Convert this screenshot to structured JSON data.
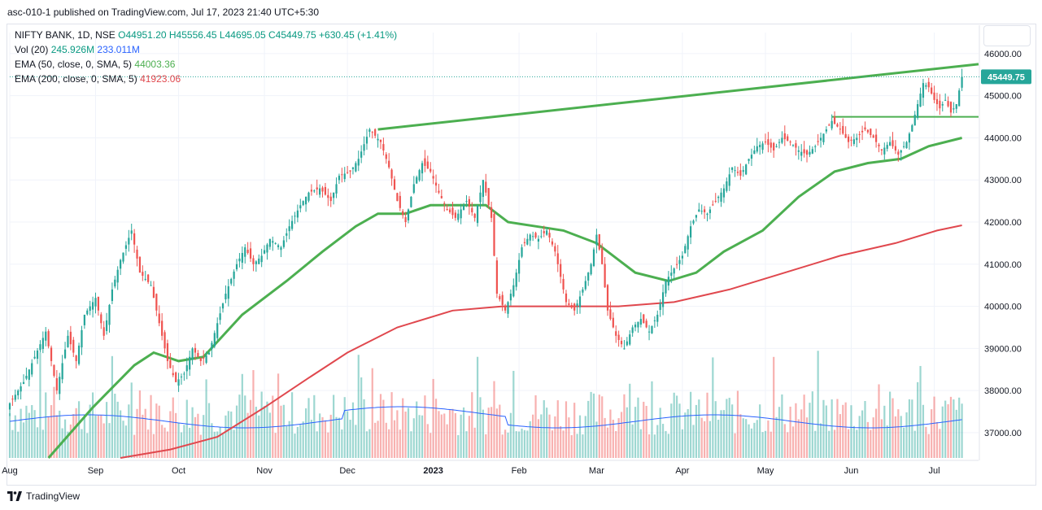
{
  "header": {
    "publish_text": "asc-010-1 published on TradingView.com, Jul 17, 2023 21:40 UTC+5:30"
  },
  "legend": {
    "title": "NIFTY BANK, 1D, NSE",
    "ohlc": "O44951.20 H45556.45 L44695.05 C45449.75 +630.45 (+1.41%)",
    "vol_label": "Vol (20)",
    "vol_value": "245.926M",
    "vol_ma": "233.011M",
    "ema50_label": "EMA (50, close, 0, SMA, 5)",
    "ema50_value": "44003.36",
    "ema200_label": "EMA (200, close, 0, SMA, 5)",
    "ema200_value": "41923.06"
  },
  "footer": {
    "brand": "TradingView"
  },
  "colors": {
    "up": "#26a69a",
    "down": "#ef5350",
    "ema50": "#4caf50",
    "ema200": "#e0484e",
    "volma": "#2962ff",
    "trend": "#4caf50",
    "price_label": "#26a69a"
  },
  "chart_data": {
    "type": "candlestick",
    "symbol": "NIFTY BANK, 1D, NSE",
    "last_price": 45449.75,
    "last_price_label": "45449.75",
    "y_range": [
      36400,
      46500
    ],
    "y_ticks": [
      37000,
      38000,
      39000,
      40000,
      41000,
      42000,
      43000,
      44000,
      45000,
      46000
    ],
    "y_tick_labels": [
      "37000.00",
      "38000.00",
      "39000.00",
      "40000.00",
      "41000.00",
      "42000.00",
      "43000.00",
      "44000.00",
      "45000.00",
      "46000.00"
    ],
    "x_range_days": [
      0,
      350
    ],
    "x_ticks": [
      {
        "label": "Aug",
        "day": 0
      },
      {
        "label": "Sep",
        "day": 31
      },
      {
        "label": "Oct",
        "day": 61
      },
      {
        "label": "Nov",
        "day": 92
      },
      {
        "label": "Dec",
        "day": 122
      },
      {
        "label": "2023",
        "day": 153
      },
      {
        "label": "Feb",
        "day": 184
      },
      {
        "label": "Mar",
        "day": 212
      },
      {
        "label": "Apr",
        "day": 243
      },
      {
        "label": "May",
        "day": 273
      },
      {
        "label": "Jun",
        "day": 304
      },
      {
        "label": "Jul",
        "day": 334
      }
    ],
    "series": [
      {
        "name": "NIFTY BANK close",
        "type": "candles",
        "points": [
          [
            0,
            37700
          ],
          [
            5,
            38200
          ],
          [
            9,
            38800
          ],
          [
            13,
            39400
          ],
          [
            17,
            38000
          ],
          [
            21,
            39300
          ],
          [
            24,
            38700
          ],
          [
            27,
            39800
          ],
          [
            31,
            40200
          ],
          [
            34,
            39300
          ],
          [
            37,
            40400
          ],
          [
            40,
            41100
          ],
          [
            44,
            41800
          ],
          [
            47,
            40800
          ],
          [
            51,
            40500
          ],
          [
            54,
            39600
          ],
          [
            57,
            38700
          ],
          [
            60,
            38200
          ],
          [
            63,
            38400
          ],
          [
            66,
            39000
          ],
          [
            69,
            38700
          ],
          [
            72,
            38900
          ],
          [
            75,
            39600
          ],
          [
            78,
            40300
          ],
          [
            82,
            41000
          ],
          [
            85,
            41400
          ],
          [
            88,
            41000
          ],
          [
            91,
            41200
          ],
          [
            94,
            41600
          ],
          [
            98,
            41400
          ],
          [
            101,
            41900
          ],
          [
            105,
            42400
          ],
          [
            108,
            42700
          ],
          [
            112,
            42800
          ],
          [
            116,
            42500
          ],
          [
            119,
            43100
          ],
          [
            123,
            43200
          ],
          [
            126,
            43500
          ],
          [
            130,
            44200
          ],
          [
            134,
            43900
          ],
          [
            137,
            43300
          ],
          [
            140,
            42500
          ],
          [
            143,
            42000
          ],
          [
            146,
            42900
          ],
          [
            149,
            43400
          ],
          [
            152,
            43200
          ],
          [
            155,
            42700
          ],
          [
            158,
            42300
          ],
          [
            161,
            42100
          ],
          [
            165,
            42500
          ],
          [
            168,
            42100
          ],
          [
            171,
            43000
          ],
          [
            174,
            42100
          ],
          [
            176,
            40300
          ],
          [
            179,
            39900
          ],
          [
            182,
            40500
          ],
          [
            185,
            41400
          ],
          [
            188,
            41700
          ],
          [
            191,
            41600
          ],
          [
            194,
            41800
          ],
          [
            197,
            41300
          ],
          [
            199,
            40700
          ],
          [
            201,
            40100
          ],
          [
            204,
            39900
          ],
          [
            207,
            40400
          ],
          [
            210,
            41000
          ],
          [
            212,
            41700
          ],
          [
            214,
            41000
          ],
          [
            216,
            39900
          ],
          [
            219,
            39300
          ],
          [
            222,
            39000
          ],
          [
            225,
            39500
          ],
          [
            228,
            39700
          ],
          [
            231,
            39400
          ],
          [
            234,
            39800
          ],
          [
            237,
            40600
          ],
          [
            240,
            40900
          ],
          [
            243,
            41200
          ],
          [
            246,
            41900
          ],
          [
            249,
            42300
          ],
          [
            252,
            42200
          ],
          [
            255,
            42500
          ],
          [
            258,
            42800
          ],
          [
            261,
            43300
          ],
          [
            264,
            43100
          ],
          [
            267,
            43500
          ],
          [
            270,
            43800
          ],
          [
            273,
            43900
          ],
          [
            276,
            43700
          ],
          [
            279,
            44000
          ],
          [
            282,
            43900
          ],
          [
            285,
            43700
          ],
          [
            288,
            43600
          ],
          [
            291,
            43800
          ],
          [
            294,
            44100
          ],
          [
            297,
            44400
          ],
          [
            300,
            44200
          ],
          [
            303,
            43900
          ],
          [
            306,
            44000
          ],
          [
            309,
            44200
          ],
          [
            312,
            44000
          ],
          [
            315,
            43700
          ],
          [
            318,
            43900
          ],
          [
            321,
            43600
          ],
          [
            324,
            43900
          ],
          [
            326,
            44300
          ],
          [
            328,
            44800
          ],
          [
            330,
            45300
          ],
          [
            332,
            45200
          ],
          [
            334,
            44900
          ],
          [
            336,
            44700
          ],
          [
            338,
            44900
          ],
          [
            340,
            44600
          ],
          [
            342,
            44800
          ],
          [
            344,
            45450
          ]
        ]
      },
      {
        "name": "EMA 50",
        "points": [
          [
            14,
            36400
          ],
          [
            30,
            37600
          ],
          [
            45,
            38600
          ],
          [
            52,
            38900
          ],
          [
            61,
            38700
          ],
          [
            70,
            38800
          ],
          [
            84,
            39800
          ],
          [
            100,
            40600
          ],
          [
            113,
            41300
          ],
          [
            125,
            41900
          ],
          [
            133,
            42200
          ],
          [
            143,
            42200
          ],
          [
            152,
            42400
          ],
          [
            162,
            42400
          ],
          [
            172,
            42400
          ],
          [
            180,
            42000
          ],
          [
            190,
            41900
          ],
          [
            200,
            41800
          ],
          [
            212,
            41500
          ],
          [
            226,
            40800
          ],
          [
            238,
            40600
          ],
          [
            248,
            40800
          ],
          [
            258,
            41300
          ],
          [
            272,
            41800
          ],
          [
            285,
            42600
          ],
          [
            298,
            43200
          ],
          [
            310,
            43400
          ],
          [
            322,
            43500
          ],
          [
            332,
            43800
          ],
          [
            344,
            44000
          ]
        ]
      },
      {
        "name": "EMA 200",
        "points": [
          [
            40,
            36400
          ],
          [
            58,
            36600
          ],
          [
            75,
            36900
          ],
          [
            92,
            37600
          ],
          [
            108,
            38300
          ],
          [
            122,
            38900
          ],
          [
            140,
            39500
          ],
          [
            160,
            39900
          ],
          [
            178,
            40000
          ],
          [
            200,
            40000
          ],
          [
            220,
            40000
          ],
          [
            240,
            40100
          ],
          [
            260,
            40400
          ],
          [
            280,
            40800
          ],
          [
            300,
            41200
          ],
          [
            320,
            41500
          ],
          [
            335,
            41800
          ],
          [
            344,
            41923
          ]
        ]
      },
      {
        "name": "Volume MA (20)",
        "values_text": [
          "245.926M",
          "233.011M"
        ]
      }
    ],
    "annotations": [
      {
        "type": "trendline",
        "from": [
          133,
          44200
        ],
        "to": [
          350,
          45750
        ]
      },
      {
        "type": "horizontal",
        "from": [
          297,
          44500
        ],
        "to": [
          350,
          44500
        ]
      }
    ]
  }
}
